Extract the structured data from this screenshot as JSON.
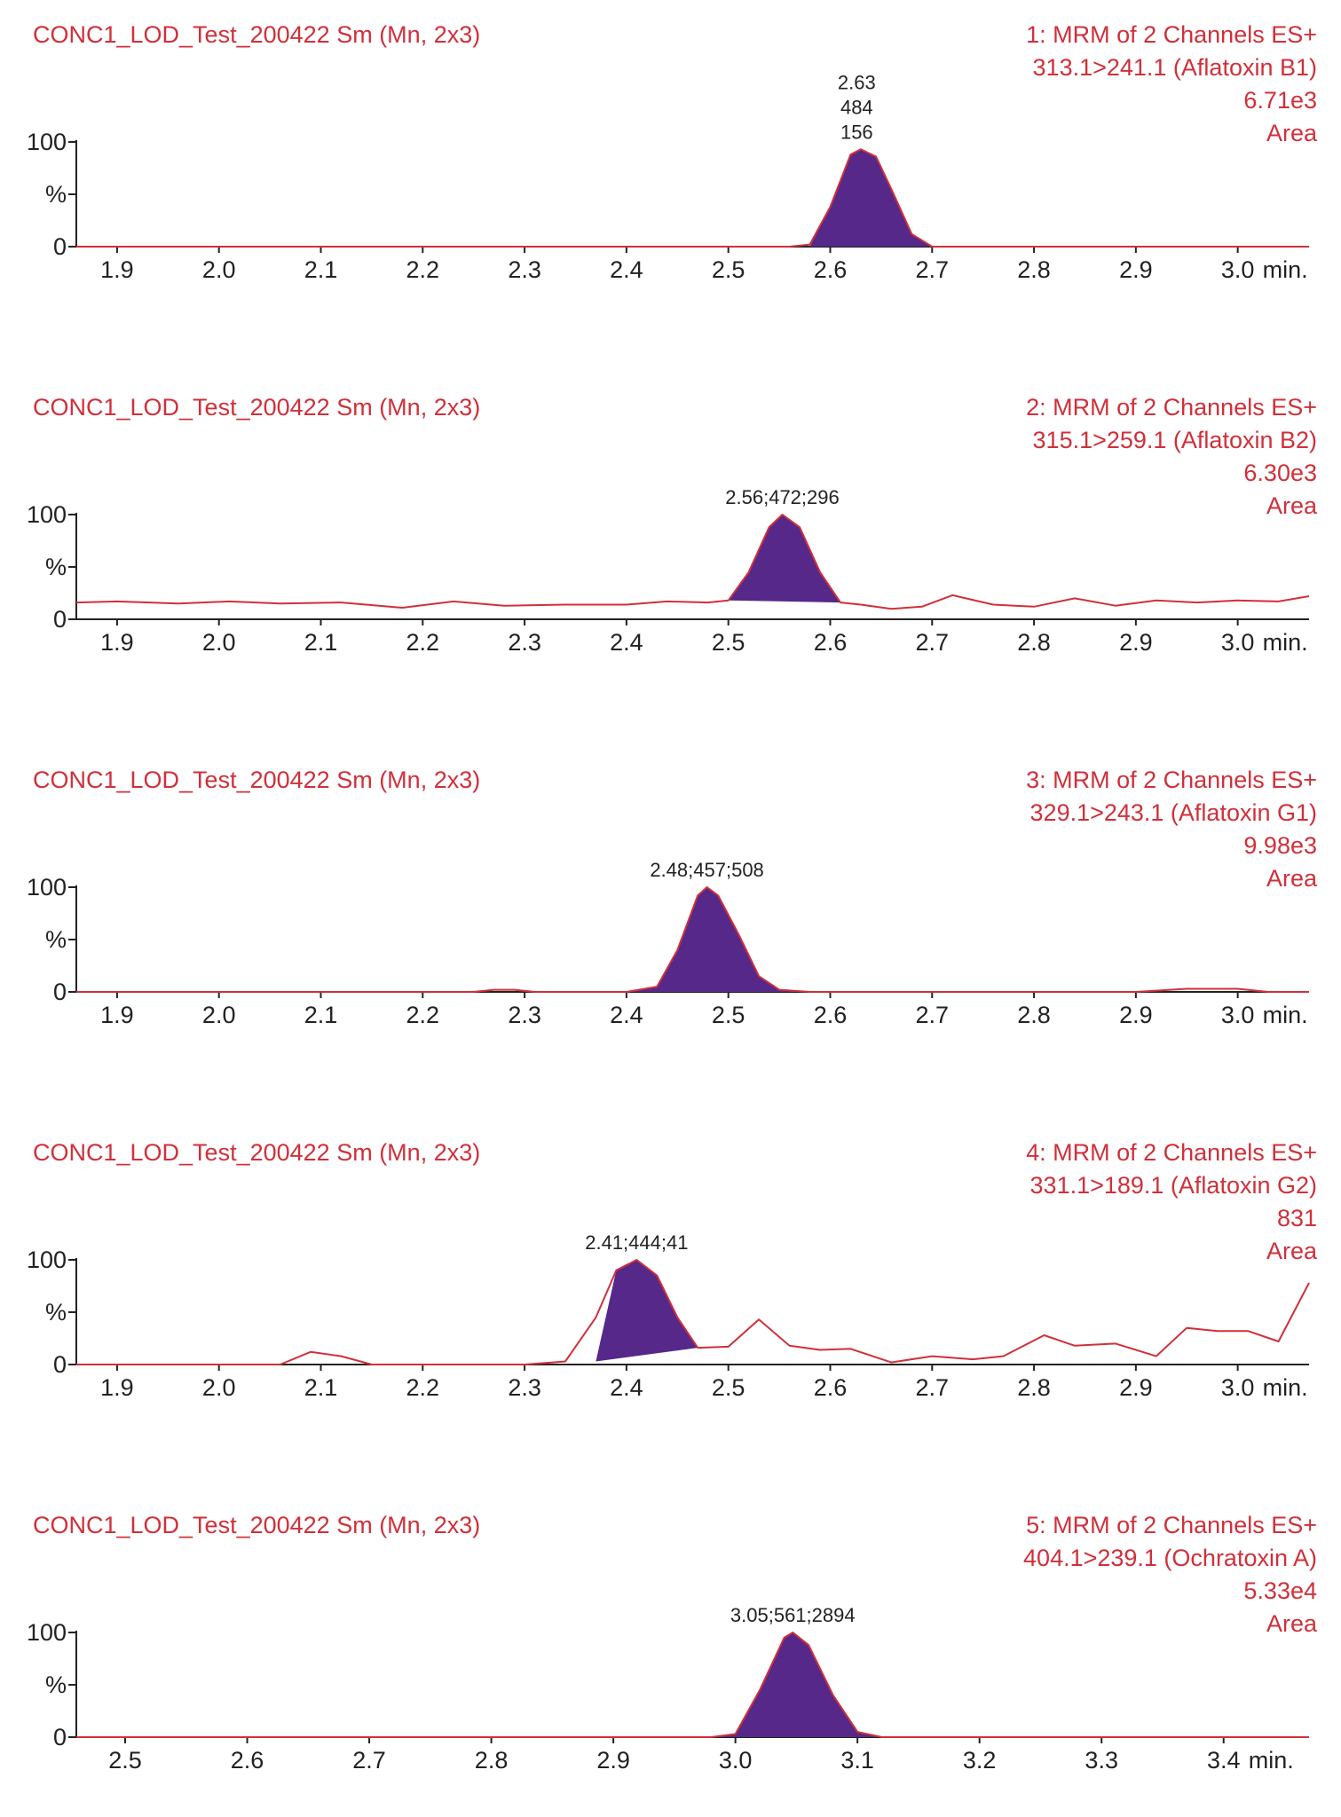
{
  "colors": {
    "trace": "#d0303a",
    "text": "#d0303a",
    "peak_fill": "#55288a",
    "axis": "#222222",
    "annotation": "#222222"
  },
  "chart_data": [
    {
      "type": "line",
      "sample": "CONC1_LOD_Test_200422 Sm (Mn, 2x3)",
      "header_lines": [
        "1: MRM of 2 Channels ES+",
        "313.1>241.1 (Aflatoxin B1)",
        "6.71e3",
        "Area"
      ],
      "y_ticks": [
        "100",
        "%",
        "0"
      ],
      "ylim": [
        0,
        100
      ],
      "xlim": [
        1.86,
        3.07
      ],
      "x_ticks": [
        "1.9",
        "2.0",
        "2.1",
        "2.2",
        "2.3",
        "2.4",
        "2.5",
        "2.6",
        "2.7",
        "2.8",
        "2.9",
        "3.0"
      ],
      "x_unit": "min.",
      "peak_labels": [
        "2.63",
        "484",
        "156"
      ],
      "peak": {
        "rt": 2.626,
        "height": 93
      },
      "x": [
        1.86,
        2.0,
        2.2,
        2.4,
        2.56,
        2.58,
        2.6,
        2.62,
        2.63,
        2.645,
        2.66,
        2.68,
        2.7,
        2.8,
        3.0,
        3.07
      ],
      "y": [
        0,
        0,
        0,
        0,
        0,
        2,
        38,
        88,
        93,
        86,
        55,
        12,
        0,
        0,
        0,
        0
      ],
      "fill_x": [
        2.58,
        2.6,
        2.62,
        2.63,
        2.645,
        2.66,
        2.68,
        2.7
      ],
      "fill_y": [
        0,
        38,
        88,
        93,
        86,
        55,
        12,
        0
      ]
    },
    {
      "type": "line",
      "sample": "CONC1_LOD_Test_200422 Sm (Mn, 2x3)",
      "header_lines": [
        "2: MRM of 2 Channels ES+",
        "315.1>259.1 (Aflatoxin B2)",
        "6.30e3",
        "Area"
      ],
      "y_ticks": [
        "100",
        "%",
        "0"
      ],
      "ylim": [
        0,
        100
      ],
      "xlim": [
        1.86,
        3.07
      ],
      "x_ticks": [
        "1.9",
        "2.0",
        "2.1",
        "2.2",
        "2.3",
        "2.4",
        "2.5",
        "2.6",
        "2.7",
        "2.8",
        "2.9",
        "3.0"
      ],
      "x_unit": "min.",
      "peak_labels": [
        "2.56;472;296"
      ],
      "peak": {
        "rt": 2.553,
        "height": 100
      },
      "x": [
        1.86,
        1.9,
        1.96,
        2.01,
        2.06,
        2.12,
        2.18,
        2.23,
        2.28,
        2.34,
        2.4,
        2.44,
        2.48,
        2.5,
        2.52,
        2.54,
        2.553,
        2.57,
        2.59,
        2.61,
        2.63,
        2.66,
        2.69,
        2.72,
        2.76,
        2.8,
        2.84,
        2.88,
        2.92,
        2.96,
        3.0,
        3.04,
        3.07
      ],
      "y": [
        16,
        17,
        15,
        17,
        15,
        16,
        11,
        17,
        13,
        14,
        14,
        17,
        16,
        18,
        45,
        88,
        100,
        88,
        45,
        16,
        14,
        10,
        12,
        23,
        14,
        12,
        20,
        13,
        18,
        16,
        18,
        17,
        22
      ],
      "fill_x": [
        2.5,
        2.52,
        2.54,
        2.553,
        2.57,
        2.59,
        2.61
      ],
      "fill_y": [
        18,
        45,
        88,
        100,
        88,
        45,
        16
      ],
      "baseline": [
        [
          2.5,
          18
        ],
        [
          2.61,
          16
        ]
      ]
    },
    {
      "type": "line",
      "sample": "CONC1_LOD_Test_200422 Sm (Mn, 2x3)",
      "header_lines": [
        "3: MRM of 2 Channels ES+",
        "329.1>243.1 (Aflatoxin G1)",
        "9.98e3",
        "Area"
      ],
      "y_ticks": [
        "100",
        "%",
        "0"
      ],
      "ylim": [
        0,
        100
      ],
      "xlim": [
        1.86,
        3.07
      ],
      "x_ticks": [
        "1.9",
        "2.0",
        "2.1",
        "2.2",
        "2.3",
        "2.4",
        "2.5",
        "2.6",
        "2.7",
        "2.8",
        "2.9",
        "3.0"
      ],
      "x_unit": "min.",
      "peak_labels": [
        "2.48;457;508"
      ],
      "peak": {
        "rt": 2.479,
        "height": 100
      },
      "x": [
        1.86,
        2.0,
        2.2,
        2.25,
        2.27,
        2.29,
        2.31,
        2.4,
        2.43,
        2.45,
        2.47,
        2.479,
        2.49,
        2.51,
        2.53,
        2.55,
        2.58,
        2.8,
        2.9,
        2.95,
        3.0,
        3.03,
        3.07
      ],
      "y": [
        0,
        0,
        0,
        0,
        2,
        2,
        0,
        0,
        5,
        40,
        92,
        100,
        92,
        55,
        15,
        2,
        0,
        0,
        0,
        3,
        3,
        0,
        0
      ],
      "fill_x": [
        2.4,
        2.43,
        2.45,
        2.47,
        2.479,
        2.49,
        2.51,
        2.53,
        2.55,
        2.58
      ],
      "fill_y": [
        0,
        5,
        40,
        92,
        100,
        92,
        55,
        15,
        2,
        0
      ]
    },
    {
      "type": "line",
      "sample": "CONC1_LOD_Test_200422 Sm (Mn, 2x3)",
      "header_lines": [
        "4: MRM of 2 Channels ES+",
        "331.1>189.1 (Aflatoxin G2)",
        "831",
        "Area"
      ],
      "y_ticks": [
        "100",
        "%",
        "0"
      ],
      "ylim": [
        0,
        100
      ],
      "xlim": [
        1.86,
        3.07
      ],
      "x_ticks": [
        "1.9",
        "2.0",
        "2.1",
        "2.2",
        "2.3",
        "2.4",
        "2.5",
        "2.6",
        "2.7",
        "2.8",
        "2.9",
        "3.0"
      ],
      "x_unit": "min.",
      "peak_labels": [
        "2.41;444;41"
      ],
      "peak": {
        "rt": 2.41,
        "height": 100
      },
      "x": [
        1.86,
        2.0,
        2.06,
        2.09,
        2.12,
        2.15,
        2.3,
        2.34,
        2.37,
        2.39,
        2.41,
        2.43,
        2.45,
        2.47,
        2.5,
        2.53,
        2.56,
        2.59,
        2.62,
        2.66,
        2.7,
        2.74,
        2.77,
        2.81,
        2.84,
        2.88,
        2.92,
        2.95,
        2.98,
        3.01,
        3.04,
        3.07
      ],
      "y": [
        0,
        0,
        0,
        12,
        8,
        0,
        0,
        3,
        45,
        90,
        100,
        85,
        45,
        16,
        17,
        43,
        18,
        14,
        15,
        2,
        8,
        5,
        8,
        28,
        18,
        20,
        8,
        35,
        32,
        32,
        22,
        78
      ],
      "fill_x": [
        2.37,
        2.39,
        2.41,
        2.43,
        2.45,
        2.47
      ],
      "fill_y": [
        3,
        90,
        100,
        85,
        45,
        16
      ],
      "baseline": [
        [
          2.37,
          3
        ],
        [
          2.47,
          16
        ]
      ]
    },
    {
      "type": "line",
      "sample": "CONC1_LOD_Test_200422 Sm (Mn, 2x3)",
      "header_lines": [
        "5: MRM of 2 Channels ES+",
        "404.1>239.1 (Ochratoxin A)",
        "5.33e4",
        "Area"
      ],
      "y_ticks": [
        "100",
        "%",
        "0"
      ],
      "ylim": [
        0,
        100
      ],
      "xlim": [
        2.46,
        3.47
      ],
      "x_ticks": [
        "2.5",
        "2.6",
        "2.7",
        "2.8",
        "2.9",
        "3.0",
        "3.1",
        "3.2",
        "3.3",
        "3.4"
      ],
      "x_unit": "min.",
      "peak_labels": [
        "3.05;561;2894"
      ],
      "peak": {
        "rt": 3.047,
        "height": 100
      },
      "x": [
        2.46,
        2.8,
        2.98,
        3.0,
        3.02,
        3.04,
        3.047,
        3.06,
        3.08,
        3.1,
        3.12,
        3.3,
        3.47
      ],
      "y": [
        0,
        0,
        0,
        3,
        45,
        95,
        100,
        88,
        40,
        5,
        0,
        0,
        0
      ],
      "fill_x": [
        2.98,
        3.0,
        3.02,
        3.04,
        3.047,
        3.06,
        3.08,
        3.1,
        3.12
      ],
      "fill_y": [
        0,
        3,
        45,
        95,
        100,
        88,
        40,
        5,
        0
      ]
    }
  ]
}
